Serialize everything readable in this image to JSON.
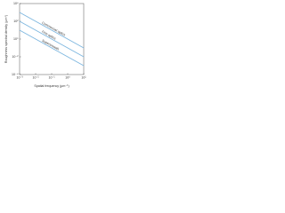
{
  "chart_data": {
    "type": "line",
    "xlabel": "Spatial frequency (μm⁻¹)",
    "ylabel": "Roughness spectral density (μm⁴)",
    "log_x": true,
    "log_y": true,
    "grid": false,
    "x": [
      0.001,
      10
    ],
    "series": [
      {
        "name": "Commercial optics",
        "color": "#7fb8e0",
        "values": [
          1000,
          0.1
        ]
      },
      {
        "name": "Fine optics",
        "color": "#7fb8e0",
        "values": [
          100,
          0.01
        ]
      },
      {
        "name": "Supersmooth",
        "color": "#7fb8e0",
        "values": [
          10,
          0.001
        ]
      }
    ],
    "xlim": [
      0.001,
      10
    ],
    "ylim": [
      0.0001,
      10000
    ],
    "xticks": [
      {
        "value": 0.001,
        "label": "10⁻³"
      },
      {
        "value": 0.01,
        "label": "10⁻²"
      },
      {
        "value": 0.1,
        "label": "10⁻¹"
      },
      {
        "value": 1,
        "label": "10⁰"
      },
      {
        "value": 10,
        "label": "10¹"
      }
    ],
    "yticks": [
      {
        "value": 0.0001,
        "label": "10⁻⁴"
      },
      {
        "value": 0.01,
        "label": "10⁻²"
      },
      {
        "value": 1,
        "label": "10⁰"
      },
      {
        "value": 100,
        "label": "10²"
      },
      {
        "value": 10000,
        "label": "10⁴"
      }
    ]
  }
}
